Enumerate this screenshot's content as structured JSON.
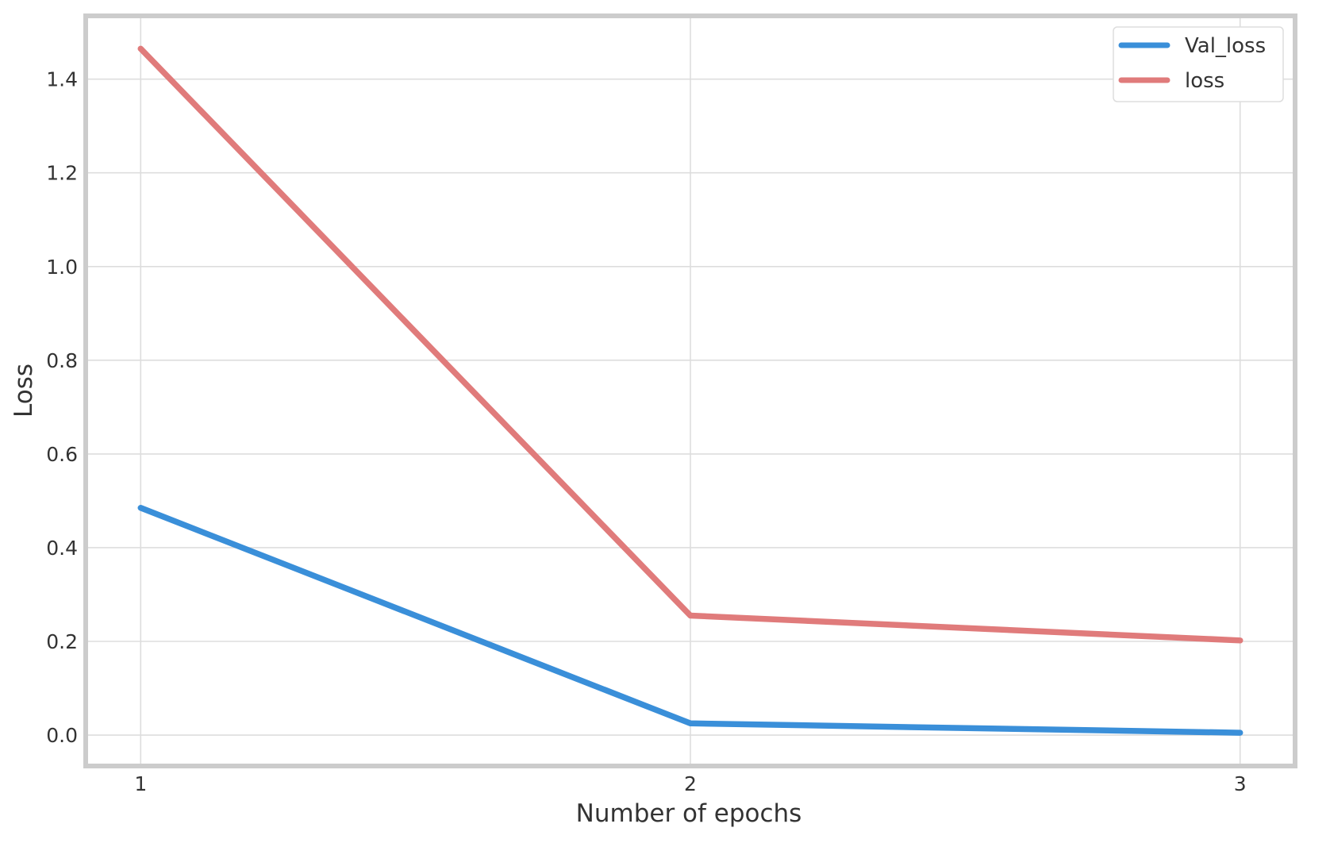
{
  "chart_data": {
    "type": "line",
    "title": "",
    "xlabel": "Number of epochs",
    "ylabel": "Loss",
    "x": [
      1,
      2,
      3
    ],
    "x_ticks": [
      "1",
      "2",
      "3"
    ],
    "y_ticks": [
      "0.0",
      "0.2",
      "0.4",
      "0.6",
      "0.8",
      "1.0",
      "1.2",
      "1.4"
    ],
    "xlim": [
      0.9,
      3.1
    ],
    "ylim": [
      -0.066,
      1.535
    ],
    "grid": true,
    "legend_position": "top-right",
    "series": [
      {
        "name": "Val_loss",
        "values": [
          0.485,
          0.025,
          0.005
        ],
        "color": "#3a8fd9"
      },
      {
        "name": "loss",
        "values": [
          1.465,
          0.255,
          0.202
        ],
        "color": "#e07b7b"
      }
    ]
  }
}
